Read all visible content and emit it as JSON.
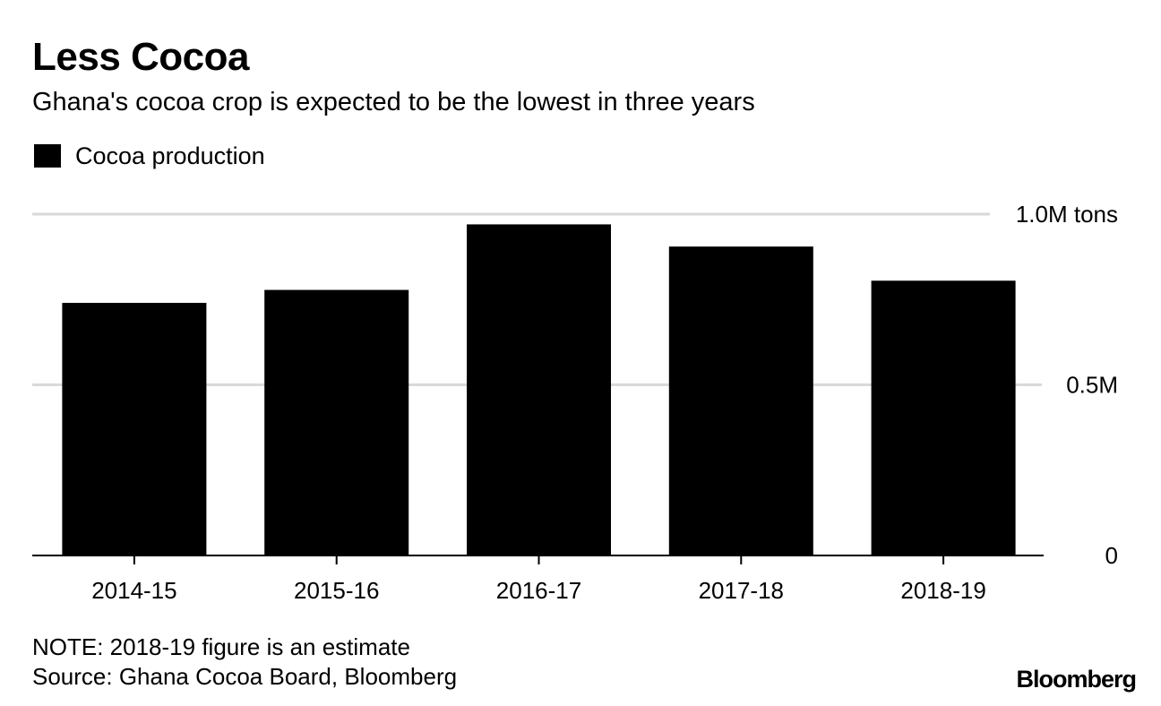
{
  "header": {
    "title": "Less Cocoa",
    "subtitle": "Ghana's cocoa crop is expected to be the lowest in three years"
  },
  "legend": {
    "label": "Cocoa production"
  },
  "footer": {
    "note": "NOTE: 2018-19 figure is an estimate",
    "source": "Source: Ghana Cocoa Board, Bloomberg",
    "brand": "Bloomberg"
  },
  "colors": {
    "bar": "#000000",
    "grid": "#d9d9d9",
    "axis": "#000000",
    "background": "#ffffff"
  },
  "chart_data": {
    "type": "bar",
    "title": "Less Cocoa",
    "subtitle": "Ghana's cocoa crop is expected to be the lowest in three years",
    "categories": [
      "2014-15",
      "2015-16",
      "2016-17",
      "2017-18",
      "2018-19"
    ],
    "series": [
      {
        "name": "Cocoa production",
        "values": [
          740000,
          778000,
          970000,
          905000,
          805000
        ]
      }
    ],
    "unit": "tons",
    "ylim": [
      0,
      1000000
    ],
    "yticks": [
      {
        "value": 0,
        "label": "0"
      },
      {
        "value": 500000,
        "label": "0.5M"
      },
      {
        "value": 1000000,
        "label": "1.0M tons"
      }
    ],
    "y_axis_side": "right",
    "grid": true,
    "legend_position": "top-left"
  }
}
